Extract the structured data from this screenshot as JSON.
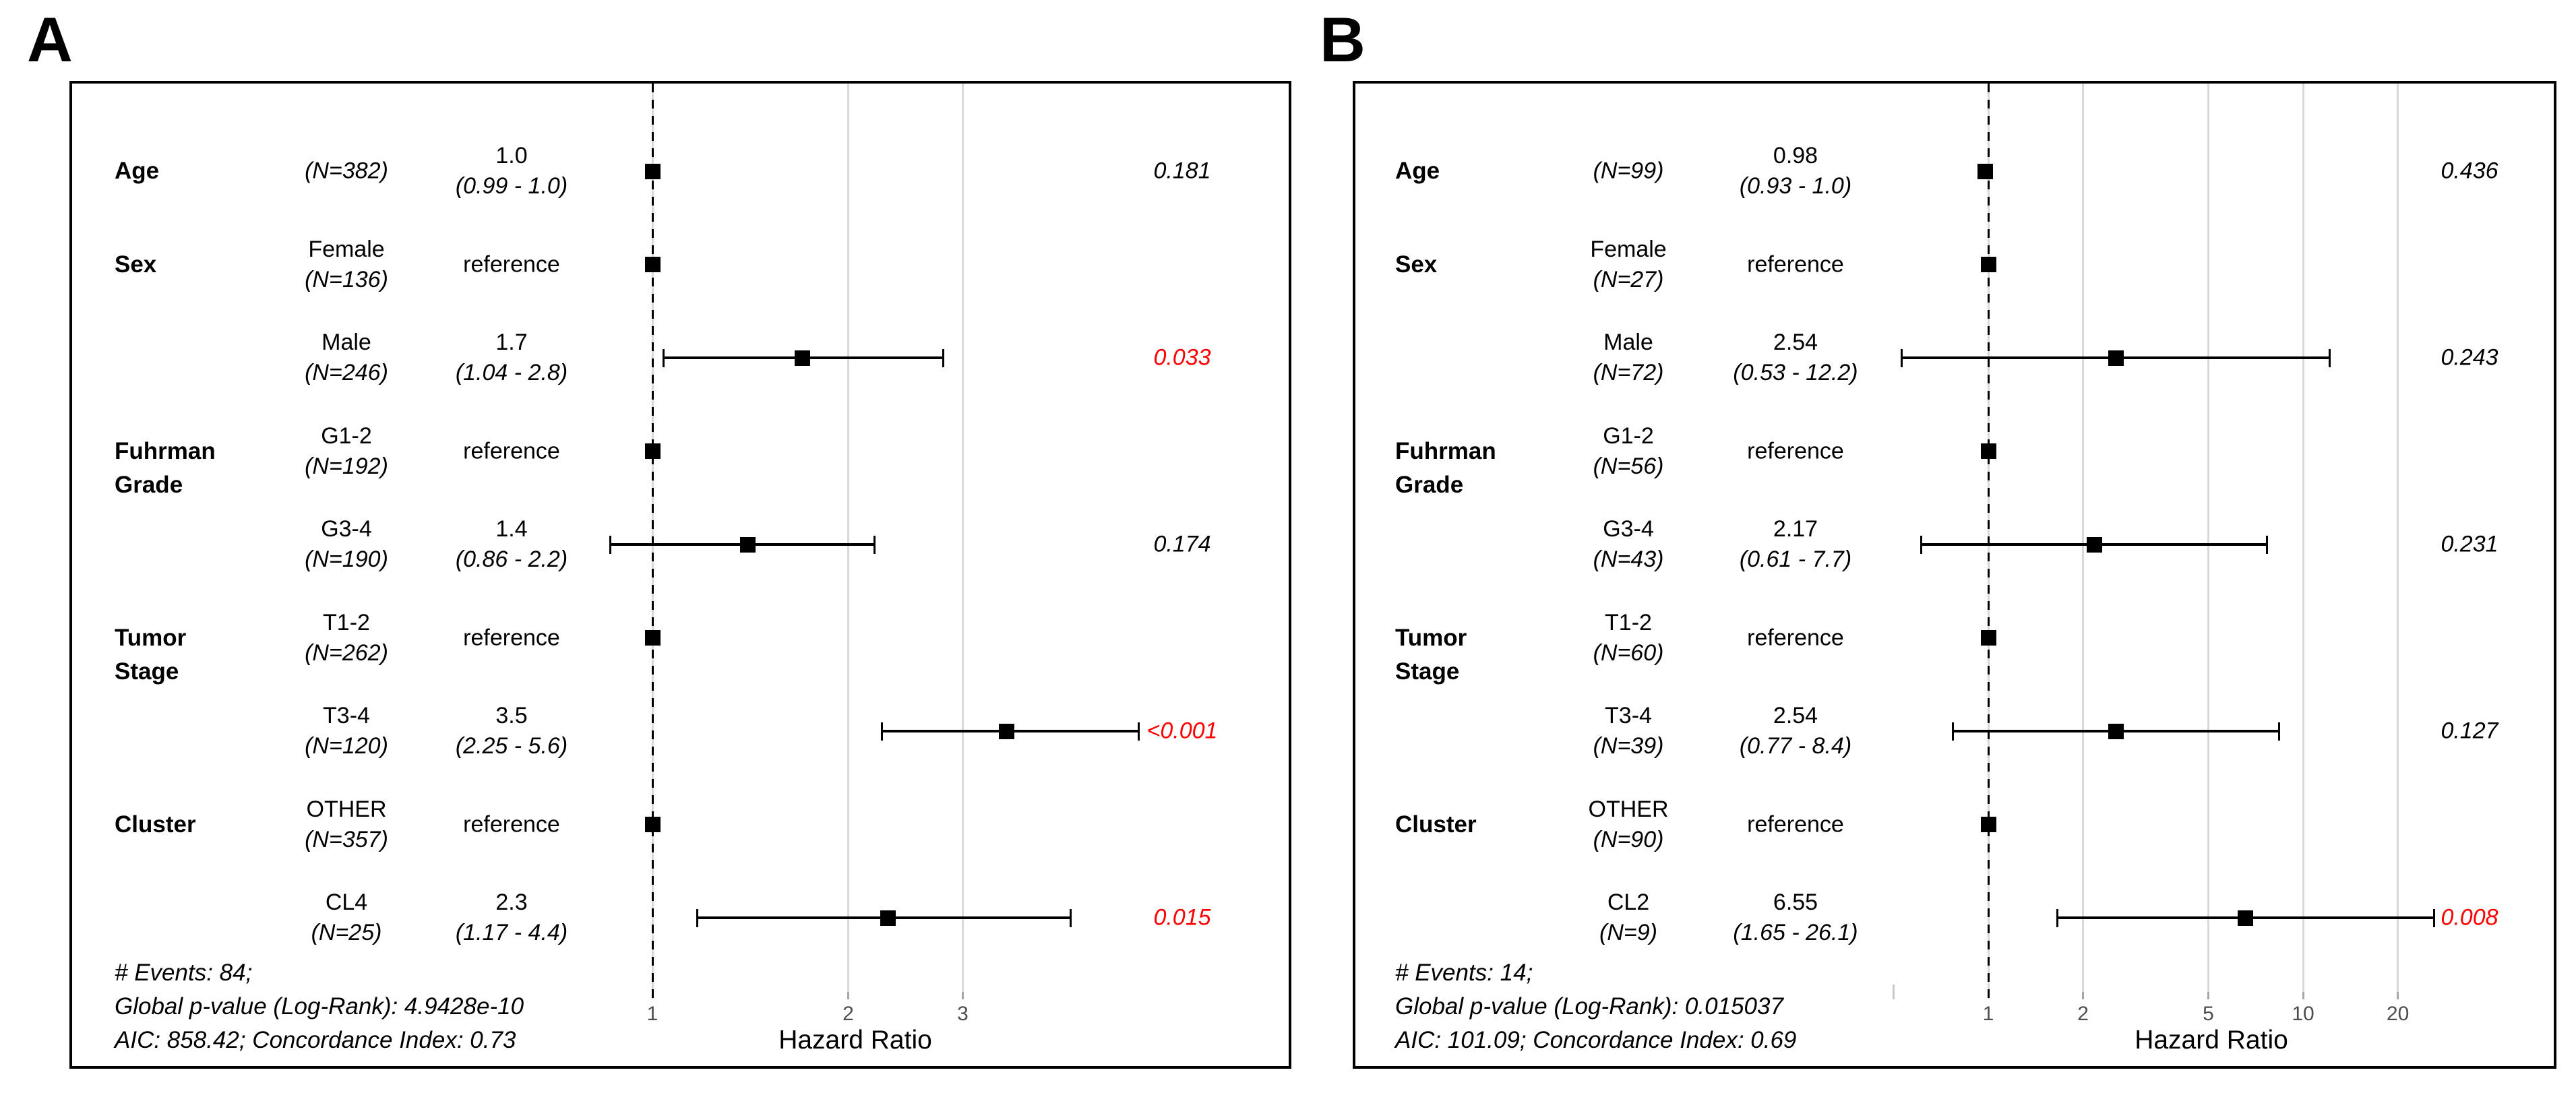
{
  "figure": {
    "kind": "forest-plot",
    "panel_count": 2
  },
  "colors": {
    "significant_p": "#ff0000",
    "text": "#000000",
    "gridline": "#d9d9d9",
    "tick_label": "#4d4d4d",
    "marker": "#000000"
  },
  "chart_data": [
    {
      "type": "scatter",
      "subtype": "forest-hazard-ratio",
      "title": "A",
      "xlabel": "Hazard Ratio",
      "x_scale": "log",
      "x_ticks": [
        1,
        2,
        3
      ],
      "x_minor_ticks": [],
      "x_ref_line": 1,
      "footer": [
        "# Events: 84;",
        "Global p-value (Log-Rank): 4.9428e-10",
        "AIC: 858.42; Concordance Index: 0.73"
      ],
      "rows": [
        {
          "variable_lines": [
            "Age"
          ],
          "level": "",
          "n": "(N=382)",
          "estimate": "1.0",
          "ci": "(0.99 - 1.0)",
          "hr": 1.0,
          "ci_low": 0.99,
          "ci_high": 1.0,
          "p_value": "0.181",
          "significant": false,
          "reference": false
        },
        {
          "variable_lines": [
            "Sex"
          ],
          "level": "Female",
          "n": "(N=136)",
          "estimate": "reference",
          "ci": "",
          "hr": 1.0,
          "ci_low": null,
          "ci_high": null,
          "p_value": "",
          "significant": false,
          "reference": true
        },
        {
          "variable_lines": [],
          "level": "Male",
          "n": "(N=246)",
          "estimate": "1.7",
          "ci": "(1.04 - 2.8)",
          "hr": 1.7,
          "ci_low": 1.04,
          "ci_high": 2.8,
          "p_value": "0.033",
          "significant": true,
          "reference": false
        },
        {
          "variable_lines": [
            "Fuhrman",
            "Grade"
          ],
          "level": "G1-2",
          "n": "(N=192)",
          "estimate": "reference",
          "ci": "",
          "hr": 1.0,
          "ci_low": null,
          "ci_high": null,
          "p_value": "",
          "significant": false,
          "reference": true
        },
        {
          "variable_lines": [],
          "level": "G3-4",
          "n": "(N=190)",
          "estimate": "1.4",
          "ci": "(0.86 - 2.2)",
          "hr": 1.4,
          "ci_low": 0.86,
          "ci_high": 2.2,
          "p_value": "0.174",
          "significant": false,
          "reference": false
        },
        {
          "variable_lines": [
            "Tumor",
            "Stage"
          ],
          "level": "T1-2",
          "n": "(N=262)",
          "estimate": "reference",
          "ci": "",
          "hr": 1.0,
          "ci_low": null,
          "ci_high": null,
          "p_value": "",
          "significant": false,
          "reference": true
        },
        {
          "variable_lines": [],
          "level": "T3-4",
          "n": "(N=120)",
          "estimate": "3.5",
          "ci": "(2.25 - 5.6)",
          "hr": 3.5,
          "ci_low": 2.25,
          "ci_high": 5.6,
          "p_value": "<0.001",
          "significant": true,
          "reference": false
        },
        {
          "variable_lines": [
            "Cluster"
          ],
          "level": "OTHER",
          "n": "(N=357)",
          "estimate": "reference",
          "ci": "",
          "hr": 1.0,
          "ci_low": null,
          "ci_high": null,
          "p_value": "",
          "significant": false,
          "reference": true
        },
        {
          "variable_lines": [],
          "level": "CL4",
          "n": "(N=25)",
          "estimate": "2.3",
          "ci": "(1.17 - 4.4)",
          "hr": 2.3,
          "ci_low": 1.17,
          "ci_high": 4.4,
          "p_value": "0.015",
          "significant": true,
          "reference": false
        }
      ]
    },
    {
      "type": "scatter",
      "subtype": "forest-hazard-ratio",
      "title": "B",
      "xlabel": "Hazard Ratio",
      "x_scale": "log",
      "x_ticks": [
        1,
        2,
        5,
        10,
        20
      ],
      "x_minor_ticks": [
        0.5
      ],
      "x_ref_line": 1,
      "footer": [
        "# Events: 14;",
        "Global p-value (Log-Rank): 0.015037",
        "AIC: 101.09; Concordance Index: 0.69"
      ],
      "rows": [
        {
          "variable_lines": [
            "Age"
          ],
          "level": "",
          "n": "(N=99)",
          "estimate": "0.98",
          "ci": "(0.93 - 1.0)",
          "hr": 0.98,
          "ci_low": 0.93,
          "ci_high": 1.0,
          "p_value": "0.436",
          "significant": false,
          "reference": false
        },
        {
          "variable_lines": [
            "Sex"
          ],
          "level": "Female",
          "n": "(N=27)",
          "estimate": "reference",
          "ci": "",
          "hr": 1.0,
          "ci_low": null,
          "ci_high": null,
          "p_value": "",
          "significant": false,
          "reference": true
        },
        {
          "variable_lines": [],
          "level": "Male",
          "n": "(N=72)",
          "estimate": "2.54",
          "ci": "(0.53 - 12.2)",
          "hr": 2.54,
          "ci_low": 0.53,
          "ci_high": 12.2,
          "p_value": "0.243",
          "significant": false,
          "reference": false
        },
        {
          "variable_lines": [
            "Fuhrman",
            "Grade"
          ],
          "level": "G1-2",
          "n": "(N=56)",
          "estimate": "reference",
          "ci": "",
          "hr": 1.0,
          "ci_low": null,
          "ci_high": null,
          "p_value": "",
          "significant": false,
          "reference": true
        },
        {
          "variable_lines": [],
          "level": "G3-4",
          "n": "(N=43)",
          "estimate": "2.17",
          "ci": "(0.61 - 7.7)",
          "hr": 2.17,
          "ci_low": 0.61,
          "ci_high": 7.7,
          "p_value": "0.231",
          "significant": false,
          "reference": false
        },
        {
          "variable_lines": [
            "Tumor",
            "Stage"
          ],
          "level": "T1-2",
          "n": "(N=60)",
          "estimate": "reference",
          "ci": "",
          "hr": 1.0,
          "ci_low": null,
          "ci_high": null,
          "p_value": "",
          "significant": false,
          "reference": true
        },
        {
          "variable_lines": [],
          "level": "T3-4",
          "n": "(N=39)",
          "estimate": "2.54",
          "ci": "(0.77 - 8.4)",
          "hr": 2.54,
          "ci_low": 0.77,
          "ci_high": 8.4,
          "p_value": "0.127",
          "significant": false,
          "reference": false
        },
        {
          "variable_lines": [
            "Cluster"
          ],
          "level": "OTHER",
          "n": "(N=90)",
          "estimate": "reference",
          "ci": "",
          "hr": 1.0,
          "ci_low": null,
          "ci_high": null,
          "p_value": "",
          "significant": false,
          "reference": true
        },
        {
          "variable_lines": [],
          "level": "CL2",
          "n": "(N=9)",
          "estimate": "6.55",
          "ci": "(1.65 - 26.1)",
          "hr": 6.55,
          "ci_low": 1.65,
          "ci_high": 26.1,
          "p_value": "0.008",
          "significant": true,
          "reference": false
        }
      ]
    }
  ]
}
